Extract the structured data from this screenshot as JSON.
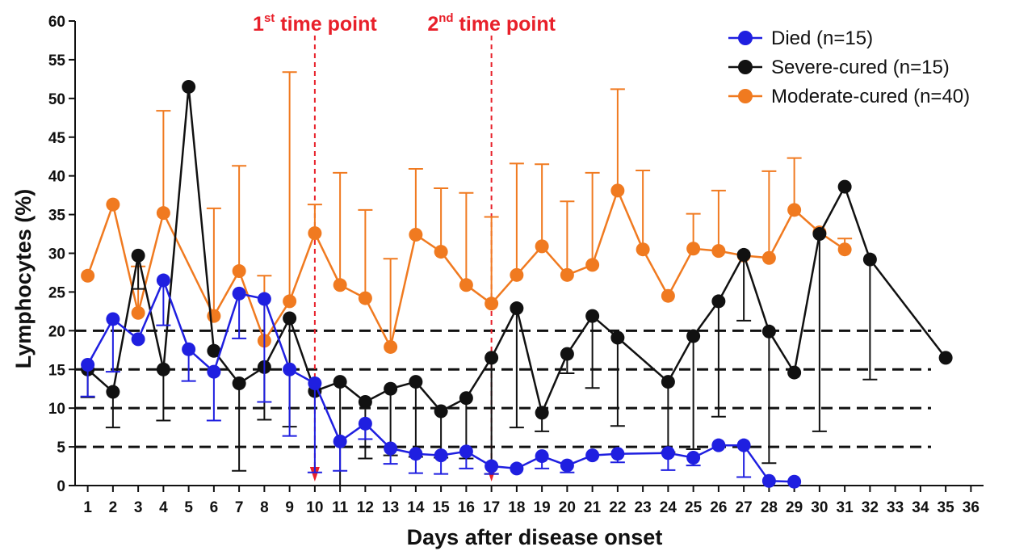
{
  "chart_data": {
    "type": "line",
    "title": "",
    "xlabel": "Days after disease onset",
    "ylabel": "Lymphocytes (%)",
    "xlim": [
      0.5,
      36.5
    ],
    "ylim": [
      0,
      60
    ],
    "x_ticks": [
      1,
      2,
      3,
      4,
      5,
      6,
      7,
      8,
      9,
      10,
      11,
      12,
      13,
      14,
      15,
      16,
      17,
      18,
      19,
      20,
      21,
      22,
      23,
      24,
      25,
      26,
      27,
      28,
      29,
      30,
      31,
      32,
      33,
      34,
      35,
      36
    ],
    "y_ticks": [
      0,
      5,
      10,
      15,
      20,
      25,
      30,
      35,
      40,
      45,
      50,
      55,
      60
    ],
    "grid": false,
    "legend_position": "top-right",
    "reference_lines_y": [
      5,
      10,
      15,
      20
    ],
    "annotations": [
      {
        "x": 10,
        "num": "1",
        "sup": "st",
        "rest": " time point"
      },
      {
        "x": 17,
        "num": "2",
        "sup": "nd",
        "rest": " time point"
      }
    ],
    "series": [
      {
        "name": "Died (n=15)",
        "color": "#1f1fe0",
        "error_dir": "down",
        "points": [
          {
            "x": 1,
            "y": 15.6,
            "err": 4.1
          },
          {
            "x": 2,
            "y": 21.5,
            "err": 6.8
          },
          {
            "x": 3,
            "y": 18.9,
            "err": 0
          },
          {
            "x": 4,
            "y": 26.5,
            "err": 5.8
          },
          {
            "x": 5,
            "y": 17.6,
            "err": 4.1
          },
          {
            "x": 6,
            "y": 14.7,
            "err": 6.3
          },
          {
            "x": 7,
            "y": 24.8,
            "err": 5.8
          },
          {
            "x": 8,
            "y": 24.1,
            "err": 13.3
          },
          {
            "x": 9,
            "y": 15.0,
            "err": 8.6
          },
          {
            "x": 10,
            "y": 13.2,
            "err": 11.5
          },
          {
            "x": 11,
            "y": 5.7,
            "err": 3.8
          },
          {
            "x": 12,
            "y": 8.0,
            "err": 2.0
          },
          {
            "x": 13,
            "y": 4.8,
            "err": 2.0
          },
          {
            "x": 14,
            "y": 4.1,
            "err": 2.5
          },
          {
            "x": 15,
            "y": 3.9,
            "err": 2.4
          },
          {
            "x": 16,
            "y": 4.4,
            "err": 2.2
          },
          {
            "x": 17,
            "y": 2.5,
            "err": 1.0
          },
          {
            "x": 18,
            "y": 2.2,
            "err": 0
          },
          {
            "x": 19,
            "y": 3.8,
            "err": 1.6
          },
          {
            "x": 20,
            "y": 2.6,
            "err": 0.9
          },
          {
            "x": 21,
            "y": 3.9,
            "err": 0
          },
          {
            "x": 22,
            "y": 4.1,
            "err": 1.1
          },
          {
            "x": 24,
            "y": 4.2,
            "err": 2.2
          },
          {
            "x": 25,
            "y": 3.6,
            "err": 1.0
          },
          {
            "x": 26,
            "y": 5.2,
            "err": 0
          },
          {
            "x": 27,
            "y": 5.2,
            "err": 4.1
          },
          {
            "x": 28,
            "y": 0.6,
            "err": 0
          },
          {
            "x": 29,
            "y": 0.5,
            "err": 0
          }
        ]
      },
      {
        "name": "Severe-cured (n=15)",
        "color": "#111111",
        "error_dir": "down",
        "points": [
          {
            "x": 1,
            "y": 15.0,
            "err": 3.6
          },
          {
            "x": 2,
            "y": 12.1,
            "err": 4.6
          },
          {
            "x": 3,
            "y": 29.7,
            "err": 4.3
          },
          {
            "x": 4,
            "y": 15.0,
            "err": 6.6
          },
          {
            "x": 5,
            "y": 51.5,
            "err": 0
          },
          {
            "x": 6,
            "y": 17.4,
            "err": 0
          },
          {
            "x": 7,
            "y": 13.2,
            "err": 11.3
          },
          {
            "x": 8,
            "y": 15.3,
            "err": 6.8
          },
          {
            "x": 9,
            "y": 21.6,
            "err": 14.0
          },
          {
            "x": 10,
            "y": 12.2,
            "err": 0
          },
          {
            "x": 11,
            "y": 13.4,
            "err": 13.4
          },
          {
            "x": 12,
            "y": 10.8,
            "err": 7.3
          },
          {
            "x": 13,
            "y": 12.5,
            "err": 8.6
          },
          {
            "x": 14,
            "y": 13.4,
            "err": 9.7
          },
          {
            "x": 15,
            "y": 9.6,
            "err": 6.0
          },
          {
            "x": 16,
            "y": 11.3,
            "err": 7.8
          },
          {
            "x": 17,
            "y": 16.5,
            "err": 15.0
          },
          {
            "x": 18,
            "y": 22.9,
            "err": 15.4
          },
          {
            "x": 19,
            "y": 9.4,
            "err": 2.4
          },
          {
            "x": 20,
            "y": 17.0,
            "err": 2.5
          },
          {
            "x": 21,
            "y": 21.9,
            "err": 9.3
          },
          {
            "x": 22,
            "y": 19.1,
            "err": 11.4
          },
          {
            "x": 24,
            "y": 13.4,
            "err": 9.1
          },
          {
            "x": 25,
            "y": 19.3,
            "err": 14.6
          },
          {
            "x": 26,
            "y": 23.8,
            "err": 14.9
          },
          {
            "x": 27,
            "y": 29.8,
            "err": 8.5
          },
          {
            "x": 28,
            "y": 19.9,
            "err": 17.0
          },
          {
            "x": 29,
            "y": 14.6,
            "err": 0
          },
          {
            "x": 30,
            "y": 32.5,
            "err": 25.5
          },
          {
            "x": 31,
            "y": 38.6,
            "err": 0
          },
          {
            "x": 32,
            "y": 29.2,
            "err": 15.5
          },
          {
            "x": 35,
            "y": 16.5,
            "err": 0
          }
        ]
      },
      {
        "name": "Moderate-cured (n=40)",
        "color": "#f07a20",
        "error_dir": "up",
        "points": [
          {
            "x": 1,
            "y": 27.1,
            "err": 0
          },
          {
            "x": 2,
            "y": 36.3,
            "err": 0
          },
          {
            "x": 3,
            "y": 22.3,
            "err": 6.0
          },
          {
            "x": 4,
            "y": 35.2,
            "err": 13.2
          },
          {
            "x": 5,
            "y": 0,
            "err": 0,
            "hidden": true
          },
          {
            "x": 6,
            "y": 21.9,
            "err": 13.9
          },
          {
            "x": 7,
            "y": 27.7,
            "err": 13.6
          },
          {
            "x": 8,
            "y": 18.7,
            "err": 8.4
          },
          {
            "x": 9,
            "y": 23.8,
            "err": 29.6
          },
          {
            "x": 10,
            "y": 32.6,
            "err": 3.7
          },
          {
            "x": 11,
            "y": 25.9,
            "err": 14.5
          },
          {
            "x": 12,
            "y": 24.2,
            "err": 11.4
          },
          {
            "x": 13,
            "y": 17.9,
            "err": 11.4
          },
          {
            "x": 14,
            "y": 32.4,
            "err": 8.5
          },
          {
            "x": 15,
            "y": 30.2,
            "err": 8.2
          },
          {
            "x": 16,
            "y": 25.9,
            "err": 11.9
          },
          {
            "x": 17,
            "y": 23.5,
            "err": 11.2
          },
          {
            "x": 18,
            "y": 27.2,
            "err": 14.4
          },
          {
            "x": 19,
            "y": 30.9,
            "err": 10.6
          },
          {
            "x": 20,
            "y": 27.2,
            "err": 9.5
          },
          {
            "x": 21,
            "y": 28.5,
            "err": 11.9
          },
          {
            "x": 22,
            "y": 38.1,
            "err": 13.1
          },
          {
            "x": 23,
            "y": 30.5,
            "err": 10.2
          },
          {
            "x": 24,
            "y": 24.5,
            "err": 0
          },
          {
            "x": 25,
            "y": 30.6,
            "err": 4.5
          },
          {
            "x": 26,
            "y": 30.3,
            "err": 7.8
          },
          {
            "x": 27,
            "y": 29.7,
            "err": 0
          },
          {
            "x": 28,
            "y": 29.4,
            "err": 11.2
          },
          {
            "x": 29,
            "y": 35.6,
            "err": 6.7
          },
          {
            "x": 30,
            "y": 32.7,
            "err": 0
          },
          {
            "x": 31,
            "y": 30.5,
            "err": 1.4
          }
        ]
      }
    ]
  }
}
